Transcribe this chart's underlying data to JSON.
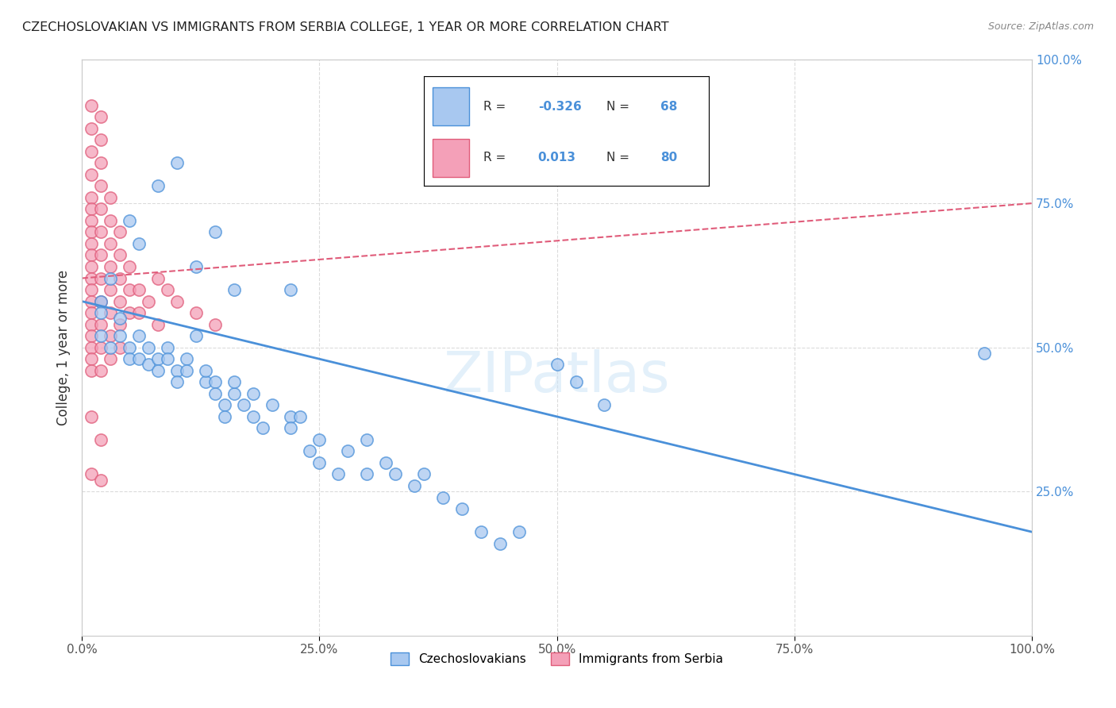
{
  "title": "CZECHOSLOVAKIAN VS IMMIGRANTS FROM SERBIA COLLEGE, 1 YEAR OR MORE CORRELATION CHART",
  "source": "Source: ZipAtlas.com",
  "ylabel": "College, 1 year or more",
  "blue_color": "#A8C8F0",
  "blue_dark": "#4A90D9",
  "pink_color": "#F4A0B8",
  "pink_dark": "#E05C7A",
  "blue_scatter": [
    [
      0.02,
      0.58
    ],
    [
      0.03,
      0.62
    ],
    [
      0.02,
      0.56
    ],
    [
      0.02,
      0.52
    ],
    [
      0.03,
      0.5
    ],
    [
      0.04,
      0.55
    ],
    [
      0.04,
      0.52
    ],
    [
      0.05,
      0.5
    ],
    [
      0.05,
      0.48
    ],
    [
      0.06,
      0.52
    ],
    [
      0.06,
      0.48
    ],
    [
      0.07,
      0.5
    ],
    [
      0.07,
      0.47
    ],
    [
      0.08,
      0.48
    ],
    [
      0.08,
      0.46
    ],
    [
      0.09,
      0.5
    ],
    [
      0.09,
      0.48
    ],
    [
      0.1,
      0.46
    ],
    [
      0.1,
      0.44
    ],
    [
      0.11,
      0.48
    ],
    [
      0.11,
      0.46
    ],
    [
      0.12,
      0.52
    ],
    [
      0.13,
      0.44
    ],
    [
      0.13,
      0.46
    ],
    [
      0.14,
      0.44
    ],
    [
      0.14,
      0.42
    ],
    [
      0.15,
      0.4
    ],
    [
      0.15,
      0.38
    ],
    [
      0.16,
      0.42
    ],
    [
      0.16,
      0.44
    ],
    [
      0.17,
      0.4
    ],
    [
      0.18,
      0.38
    ],
    [
      0.18,
      0.42
    ],
    [
      0.19,
      0.36
    ],
    [
      0.2,
      0.4
    ],
    [
      0.22,
      0.38
    ],
    [
      0.22,
      0.36
    ],
    [
      0.23,
      0.38
    ],
    [
      0.24,
      0.32
    ],
    [
      0.25,
      0.34
    ],
    [
      0.25,
      0.3
    ],
    [
      0.27,
      0.28
    ],
    [
      0.28,
      0.32
    ],
    [
      0.3,
      0.28
    ],
    [
      0.3,
      0.34
    ],
    [
      0.32,
      0.3
    ],
    [
      0.33,
      0.28
    ],
    [
      0.35,
      0.26
    ],
    [
      0.36,
      0.28
    ],
    [
      0.38,
      0.24
    ],
    [
      0.4,
      0.22
    ],
    [
      0.42,
      0.18
    ],
    [
      0.44,
      0.16
    ],
    [
      0.46,
      0.18
    ],
    [
      0.08,
      0.78
    ],
    [
      0.1,
      0.82
    ],
    [
      0.14,
      0.7
    ],
    [
      0.22,
      0.6
    ],
    [
      0.05,
      0.72
    ],
    [
      0.06,
      0.68
    ],
    [
      0.12,
      0.64
    ],
    [
      0.16,
      0.6
    ],
    [
      0.5,
      0.47
    ],
    [
      0.52,
      0.44
    ],
    [
      0.55,
      0.4
    ],
    [
      0.95,
      0.49
    ]
  ],
  "pink_scatter": [
    [
      0.01,
      0.92
    ],
    [
      0.01,
      0.88
    ],
    [
      0.01,
      0.84
    ],
    [
      0.01,
      0.8
    ],
    [
      0.01,
      0.76
    ],
    [
      0.01,
      0.74
    ],
    [
      0.01,
      0.72
    ],
    [
      0.01,
      0.7
    ],
    [
      0.01,
      0.68
    ],
    [
      0.01,
      0.66
    ],
    [
      0.01,
      0.64
    ],
    [
      0.01,
      0.62
    ],
    [
      0.01,
      0.6
    ],
    [
      0.01,
      0.58
    ],
    [
      0.01,
      0.56
    ],
    [
      0.01,
      0.54
    ],
    [
      0.01,
      0.52
    ],
    [
      0.01,
      0.5
    ],
    [
      0.01,
      0.48
    ],
    [
      0.01,
      0.46
    ],
    [
      0.02,
      0.9
    ],
    [
      0.02,
      0.86
    ],
    [
      0.02,
      0.82
    ],
    [
      0.02,
      0.78
    ],
    [
      0.02,
      0.74
    ],
    [
      0.02,
      0.7
    ],
    [
      0.02,
      0.66
    ],
    [
      0.02,
      0.62
    ],
    [
      0.02,
      0.58
    ],
    [
      0.02,
      0.54
    ],
    [
      0.02,
      0.5
    ],
    [
      0.02,
      0.46
    ],
    [
      0.03,
      0.76
    ],
    [
      0.03,
      0.72
    ],
    [
      0.03,
      0.68
    ],
    [
      0.03,
      0.64
    ],
    [
      0.03,
      0.6
    ],
    [
      0.03,
      0.56
    ],
    [
      0.03,
      0.52
    ],
    [
      0.03,
      0.48
    ],
    [
      0.04,
      0.7
    ],
    [
      0.04,
      0.66
    ],
    [
      0.04,
      0.62
    ],
    [
      0.04,
      0.58
    ],
    [
      0.04,
      0.54
    ],
    [
      0.04,
      0.5
    ],
    [
      0.05,
      0.64
    ],
    [
      0.05,
      0.6
    ],
    [
      0.05,
      0.56
    ],
    [
      0.06,
      0.6
    ],
    [
      0.06,
      0.56
    ],
    [
      0.07,
      0.58
    ],
    [
      0.08,
      0.54
    ],
    [
      0.01,
      0.38
    ],
    [
      0.02,
      0.34
    ],
    [
      0.01,
      0.28
    ],
    [
      0.02,
      0.27
    ],
    [
      0.08,
      0.62
    ],
    [
      0.09,
      0.6
    ],
    [
      0.1,
      0.58
    ],
    [
      0.12,
      0.56
    ],
    [
      0.14,
      0.54
    ]
  ],
  "blue_line_x": [
    0.0,
    1.0
  ],
  "blue_line_y": [
    0.58,
    0.18
  ],
  "pink_line_x": [
    0.0,
    1.0
  ],
  "pink_line_y": [
    0.62,
    0.75
  ],
  "xlim": [
    0.0,
    1.0
  ],
  "ylim": [
    0.0,
    1.0
  ],
  "figsize": [
    14.06,
    8.92
  ],
  "dpi": 100
}
